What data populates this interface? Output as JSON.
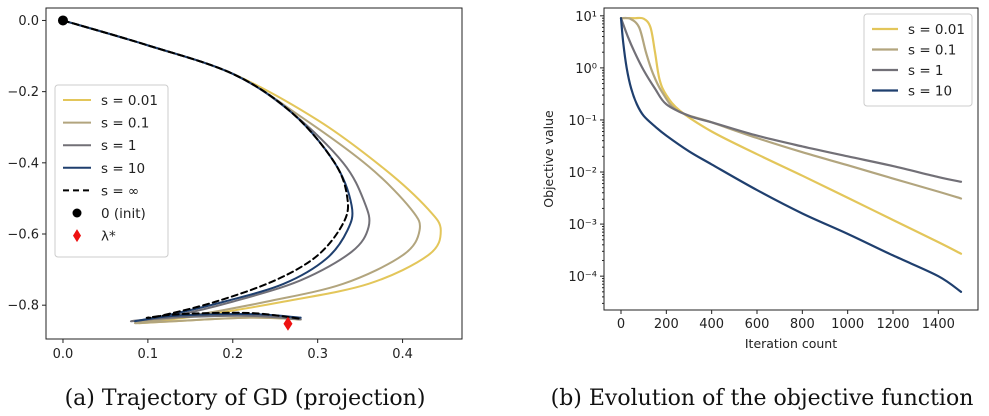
{
  "colors": {
    "s_0_01": "#e3c65a",
    "s_0_1": "#b2a57e",
    "s_1": "#727077",
    "s_10": "#1f3f6e",
    "s_inf": "#000000",
    "lambda_star": "#ee1111"
  },
  "captions": {
    "a": "(a) Trajectory of GD (projection)",
    "b": "(b) Evolution of the objective function"
  },
  "chart_data": [
    {
      "type": "line",
      "xlim": [
        -0.02,
        0.47
      ],
      "ylim": [
        -0.895,
        0.035
      ],
      "xticks": [
        "0.0",
        "0.1",
        "0.2",
        "0.3",
        "0.4"
      ],
      "xtick_values": [
        0.0,
        0.1,
        0.2,
        0.3,
        0.4
      ],
      "yticks": [
        "0.0",
        "−0.2",
        "−0.4",
        "−0.6",
        "−0.8"
      ],
      "ytick_values": [
        0.0,
        -0.2,
        -0.4,
        -0.6,
        -0.8
      ],
      "legend_position": "center-left",
      "series": [
        {
          "name": "s = 0.01",
          "color_key": "s_0_01",
          "style": "solid",
          "points": [
            [
              0,
              0
            ],
            [
              0.1,
              -0.07
            ],
            [
              0.2,
              -0.15
            ],
            [
              0.3,
              -0.28
            ],
            [
              0.38,
              -0.42
            ],
            [
              0.43,
              -0.53
            ],
            [
              0.445,
              -0.59
            ],
            [
              0.43,
              -0.66
            ],
            [
              0.36,
              -0.74
            ],
            [
              0.26,
              -0.79
            ],
            [
              0.16,
              -0.83
            ],
            [
              0.09,
              -0.85
            ],
            [
              0.13,
              -0.845
            ],
            [
              0.22,
              -0.835
            ],
            [
              0.28,
              -0.84
            ]
          ]
        },
        {
          "name": "s = 0.1",
          "color_key": "s_0_1",
          "style": "solid",
          "points": [
            [
              0,
              0
            ],
            [
              0.1,
              -0.07
            ],
            [
              0.2,
              -0.15
            ],
            [
              0.28,
              -0.27
            ],
            [
              0.36,
              -0.41
            ],
            [
              0.41,
              -0.53
            ],
            [
              0.42,
              -0.59
            ],
            [
              0.4,
              -0.66
            ],
            [
              0.33,
              -0.74
            ],
            [
              0.24,
              -0.79
            ],
            [
              0.15,
              -0.83
            ],
            [
              0.085,
              -0.85
            ],
            [
              0.13,
              -0.845
            ],
            [
              0.22,
              -0.835
            ],
            [
              0.28,
              -0.84
            ]
          ]
        },
        {
          "name": "s = 1",
          "color_key": "s_1",
          "style": "solid",
          "points": [
            [
              0,
              0
            ],
            [
              0.1,
              -0.07
            ],
            [
              0.2,
              -0.15
            ],
            [
              0.27,
              -0.26
            ],
            [
              0.33,
              -0.4
            ],
            [
              0.355,
              -0.51
            ],
            [
              0.36,
              -0.58
            ],
            [
              0.34,
              -0.65
            ],
            [
              0.28,
              -0.73
            ],
            [
              0.2,
              -0.79
            ],
            [
              0.13,
              -0.83
            ],
            [
              0.08,
              -0.845
            ],
            [
              0.13,
              -0.835
            ],
            [
              0.22,
              -0.83
            ],
            [
              0.28,
              -0.84
            ]
          ]
        },
        {
          "name": "s = 10",
          "color_key": "s_10",
          "style": "solid",
          "points": [
            [
              0,
              0
            ],
            [
              0.1,
              -0.07
            ],
            [
              0.2,
              -0.15
            ],
            [
              0.27,
              -0.26
            ],
            [
              0.32,
              -0.4
            ],
            [
              0.34,
              -0.52
            ],
            [
              0.335,
              -0.59
            ],
            [
              0.31,
              -0.67
            ],
            [
              0.26,
              -0.74
            ],
            [
              0.19,
              -0.79
            ],
            [
              0.12,
              -0.83
            ],
            [
              0.085,
              -0.845
            ],
            [
              0.13,
              -0.83
            ],
            [
              0.22,
              -0.825
            ],
            [
              0.28,
              -0.835
            ]
          ]
        },
        {
          "name": "s = ∞",
          "color_key": "s_inf",
          "style": "dashed",
          "points": [
            [
              0,
              0
            ],
            [
              0.1,
              -0.07
            ],
            [
              0.2,
              -0.15
            ],
            [
              0.27,
              -0.26
            ],
            [
              0.32,
              -0.4
            ],
            [
              0.335,
              -0.5
            ],
            [
              0.33,
              -0.57
            ],
            [
              0.3,
              -0.66
            ],
            [
              0.25,
              -0.73
            ],
            [
              0.18,
              -0.79
            ],
            [
              0.115,
              -0.83
            ],
            [
              0.1,
              -0.835
            ],
            [
              0.14,
              -0.825
            ],
            [
              0.22,
              -0.822
            ],
            [
              0.28,
              -0.838
            ]
          ]
        }
      ],
      "markers": [
        {
          "name": "0 (init)",
          "color_key": "s_inf",
          "shape": "circle",
          "x": 0.0,
          "y": 0.0
        },
        {
          "name": "λ*",
          "color_key": "lambda_star",
          "shape": "diamond",
          "x": 0.265,
          "y": -0.852
        }
      ]
    },
    {
      "type": "line",
      "xlabel": "Iteration count",
      "ylabel": "Objective value",
      "yscale": "log",
      "xlim": [
        -75,
        1575
      ],
      "ylim_exp": [
        -4.65,
        1.15
      ],
      "xticks": [
        "0",
        "200",
        "400",
        "600",
        "800",
        "1000",
        "1200",
        "1400"
      ],
      "xtick_values": [
        0,
        200,
        400,
        600,
        800,
        1000,
        1200,
        1400
      ],
      "yticks": [
        "10¹",
        "10⁰",
        "10⁻¹",
        "10⁻²",
        "10⁻³",
        "10⁻⁴"
      ],
      "ytick_exps": [
        1,
        0,
        -1,
        -2,
        -3,
        -4
      ],
      "legend_position": "top-right",
      "series": [
        {
          "name": "s = 0.01",
          "color_key": "s_0_01",
          "points": [
            [
              0,
              9
            ],
            [
              60,
              9
            ],
            [
              100,
              8.8
            ],
            [
              130,
              6
            ],
            [
              150,
              2
            ],
            [
              170,
              0.6
            ],
            [
              200,
              0.3
            ],
            [
              260,
              0.15
            ],
            [
              400,
              0.06
            ],
            [
              600,
              0.022
            ],
            [
              800,
              0.0085
            ],
            [
              1000,
              0.0032
            ],
            [
              1200,
              0.0012
            ],
            [
              1400,
              0.00045
            ],
            [
              1500,
              0.00027
            ]
          ]
        },
        {
          "name": "s = 0.1",
          "color_key": "s_0_1",
          "points": [
            [
              0,
              9
            ],
            [
              40,
              8.8
            ],
            [
              80,
              6
            ],
            [
              110,
              2
            ],
            [
              140,
              0.8
            ],
            [
              180,
              0.35
            ],
            [
              250,
              0.15
            ],
            [
              400,
              0.09
            ],
            [
              600,
              0.045
            ],
            [
              800,
              0.024
            ],
            [
              1000,
              0.0135
            ],
            [
              1200,
              0.0075
            ],
            [
              1400,
              0.0042
            ],
            [
              1500,
              0.0031
            ]
          ]
        },
        {
          "name": "s = 1",
          "color_key": "s_1",
          "points": [
            [
              0,
              9
            ],
            [
              30,
              4
            ],
            [
              60,
              2
            ],
            [
              100,
              0.9
            ],
            [
              150,
              0.4
            ],
            [
              200,
              0.2
            ],
            [
              300,
              0.12
            ],
            [
              400,
              0.09
            ],
            [
              600,
              0.05
            ],
            [
              800,
              0.031
            ],
            [
              1000,
              0.02
            ],
            [
              1200,
              0.013
            ],
            [
              1400,
              0.008
            ],
            [
              1500,
              0.0065
            ]
          ]
        },
        {
          "name": "s = 10",
          "color_key": "s_10",
          "points": [
            [
              0,
              9
            ],
            [
              10,
              3
            ],
            [
              25,
              1
            ],
            [
              45,
              0.4
            ],
            [
              70,
              0.2
            ],
            [
              100,
              0.12
            ],
            [
              150,
              0.075
            ],
            [
              200,
              0.05
            ],
            [
              300,
              0.025
            ],
            [
              400,
              0.014
            ],
            [
              600,
              0.0045
            ],
            [
              800,
              0.0016
            ],
            [
              1000,
              0.00065
            ],
            [
              1200,
              0.00025
            ],
            [
              1400,
              0.0001
            ],
            [
              1500,
              5e-05
            ]
          ]
        }
      ]
    }
  ]
}
